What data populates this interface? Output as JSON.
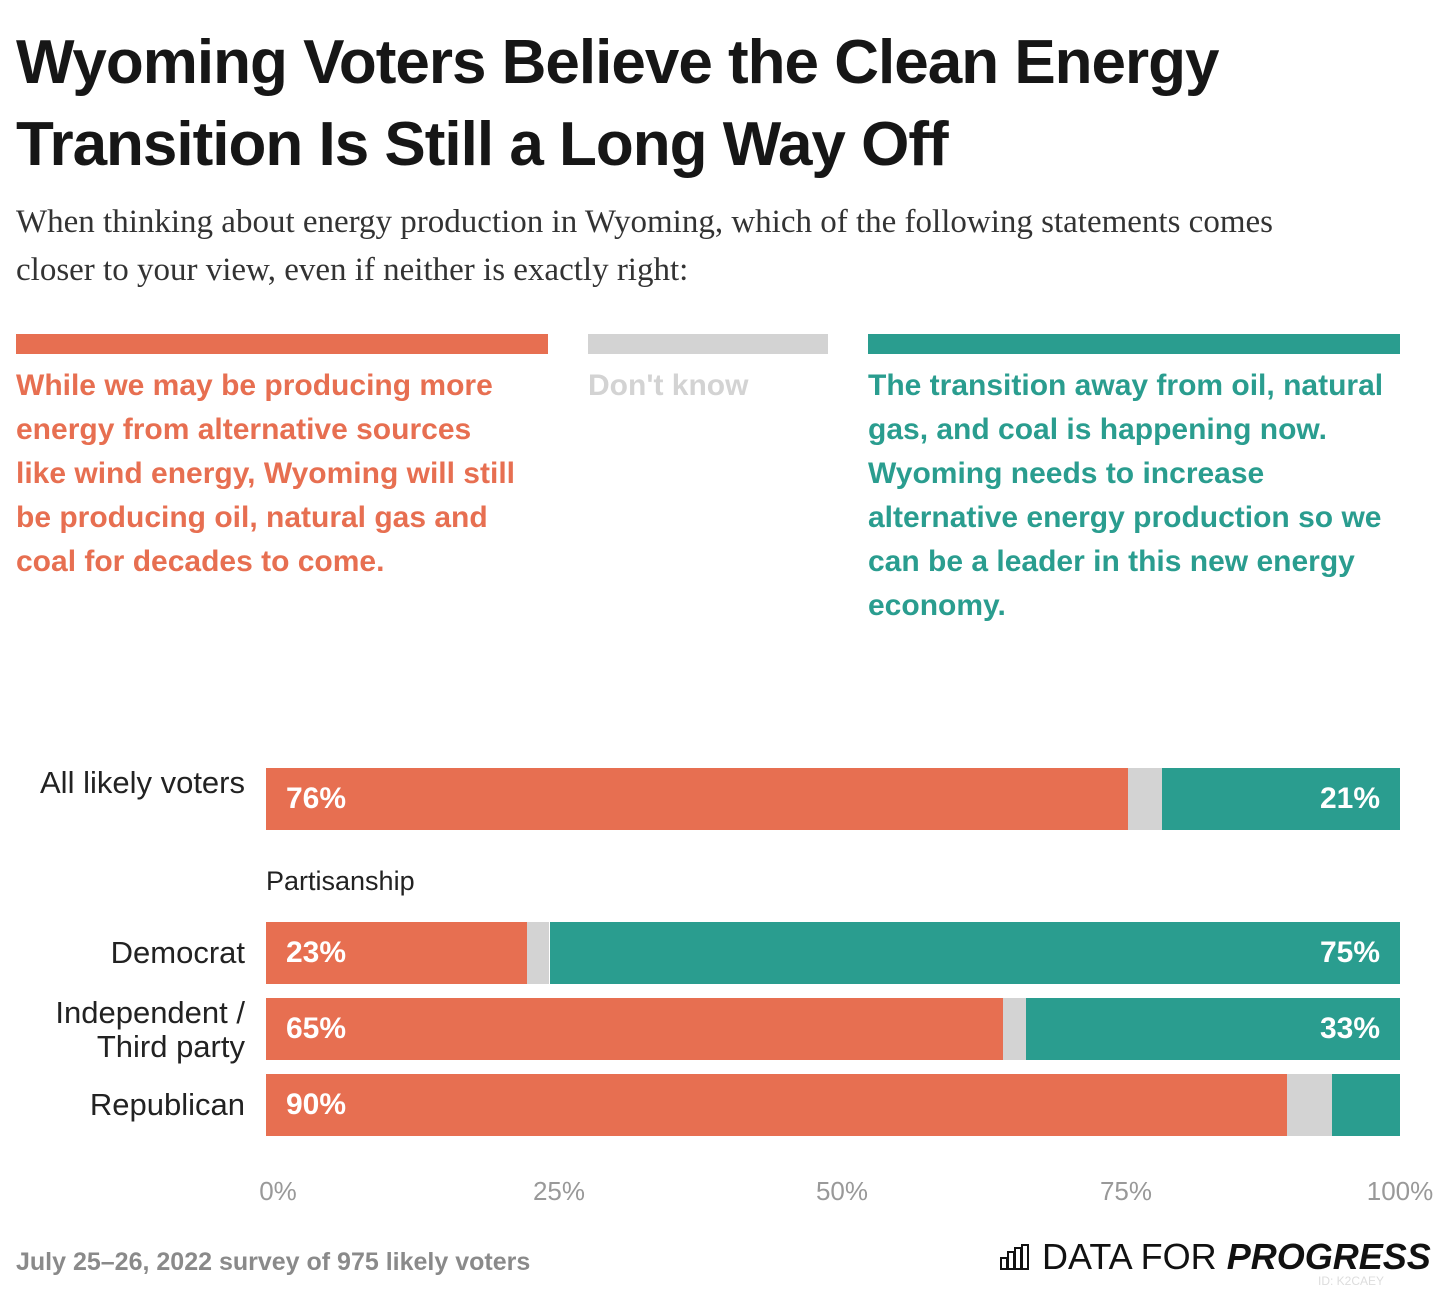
{
  "title": "Wyoming Voters Believe the Clean Energy Transition Is Still a Long Way Off",
  "subtitle": "When thinking about energy production in Wyoming, which of the following statements comes closer to your view, even if neither is exactly right:",
  "legend": [
    {
      "label": "While we may be producing more energy from alternative sources like wind energy, Wyoming will still be producing oil, natural gas and coal for decades to come.",
      "color": "#e76f51"
    },
    {
      "label": "Don't know",
      "color": "#d3d3d3"
    },
    {
      "label": "The transition away from oil, natural gas, and coal is happening now. Wyoming needs to increase alternative energy production so we can be a leader in this new energy economy.",
      "color": "#2a9d8f"
    }
  ],
  "chart_data": {
    "type": "bar",
    "stacked": true,
    "orientation": "horizontal",
    "categories": [
      "All likely voters",
      "Democrat",
      "Independent / Third party",
      "Republican"
    ],
    "group_label": "Partisanship",
    "series": [
      {
        "name": "While we may be producing more energy from alternative sources...",
        "values": [
          76,
          23,
          65,
          90
        ],
        "color": "#e76f51"
      },
      {
        "name": "Don't know",
        "values": [
          3,
          2,
          2,
          4
        ],
        "color": "#d3d3d3"
      },
      {
        "name": "The transition away from oil, natural gas, and coal is happening now...",
        "values": [
          21,
          75,
          33,
          6
        ],
        "color": "#2a9d8f"
      }
    ],
    "labels": [
      [
        "76%",
        "",
        "21%"
      ],
      [
        "23%",
        "",
        "75%"
      ],
      [
        "65%",
        "",
        "33%"
      ],
      [
        "90%",
        "",
        ""
      ]
    ],
    "xticks": [
      "0%",
      "25%",
      "50%",
      "75%",
      "100%"
    ],
    "xlim": [
      0,
      100
    ]
  },
  "source": "July 25–26, 2022 survey of 975 likely voters",
  "logo": {
    "light": "DATA FOR",
    "bold": "PROGRESS",
    "id": "ID: K2CAEY"
  }
}
